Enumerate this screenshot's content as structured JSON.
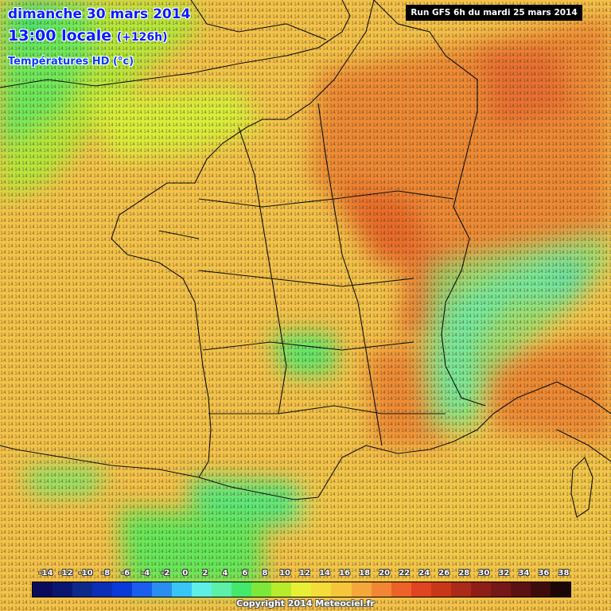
{
  "header": {
    "date": "dimanche 30 mars 2014",
    "time": "13:00 locale",
    "lead": "(+126h)",
    "variable": "Températures HD (°c)"
  },
  "run_info": "Run GFS 6h du mardi 25 mars 2014",
  "copyright": "Copyright 2014 Meteociel.fr",
  "legend": {
    "labels": [
      "-14",
      "-12",
      "-10",
      "-8",
      "-6",
      "-4",
      "-2",
      "0",
      "2",
      "4",
      "6",
      "8",
      "10",
      "12",
      "14",
      "16",
      "18",
      "20",
      "22",
      "24",
      "26",
      "28",
      "30",
      "32",
      "34",
      "36",
      "38"
    ],
    "colors": [
      "#0b0b5e",
      "#0a1770",
      "#0c2a8a",
      "#0b2fb6",
      "#0a3ad8",
      "#1a5ef0",
      "#2a8ef0",
      "#38c6f6",
      "#5ef0e6",
      "#5cf0a8",
      "#44e86a",
      "#7ee83a",
      "#b6ec2c",
      "#e8f036",
      "#f4dc3a",
      "#f6c63a",
      "#f4a83c",
      "#f28634",
      "#ec6228",
      "#e04420",
      "#c83818",
      "#ac2a18",
      "#901e18",
      "#761818",
      "#5c1212",
      "#3e0c0c",
      "#1c0606"
    ]
  },
  "field_colors": {
    "land_main": "#f3c24a",
    "warm": "#ee8a35",
    "hot": "#e8702c",
    "sea_cool": "#b9e63a",
    "cold_green": "#5ce87a",
    "alps_cold": "#5ee8e8"
  }
}
